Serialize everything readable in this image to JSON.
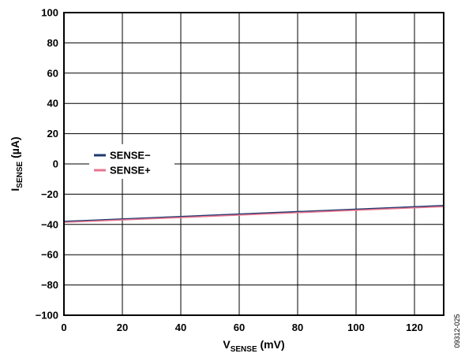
{
  "chart_data": {
    "type": "line",
    "xlabel": {
      "main": "V",
      "sub": "SENSE",
      "unit": " (mV)"
    },
    "ylabel": {
      "main": "I",
      "sub": "SENSE",
      "unit": " (µA)"
    },
    "xlim": [
      0,
      130
    ],
    "ylim": [
      -100,
      100
    ],
    "xticks": [
      0,
      20,
      40,
      60,
      80,
      100,
      120
    ],
    "yticks": [
      -100,
      -80,
      -60,
      -40,
      -20,
      0,
      20,
      40,
      60,
      80,
      100
    ],
    "xtick_labels": [
      "0",
      "20",
      "40",
      "60",
      "80",
      "100",
      "120"
    ],
    "ytick_labels": [
      "−100",
      "−80",
      "−60",
      "−40",
      "−20",
      "0",
      "20",
      "40",
      "60",
      "80",
      "100"
    ],
    "grid": true,
    "legend_position": "left-center",
    "series": [
      {
        "name": "SENSE−",
        "color": "#1f3a6e",
        "x": [
          0,
          130
        ],
        "y": [
          -38,
          -27.5
        ]
      },
      {
        "name": "SENSE+",
        "color": "#e8758f",
        "x": [
          0,
          130
        ],
        "y": [
          -38.6,
          -28.2
        ]
      }
    ],
    "figure_id": "09312-025"
  }
}
